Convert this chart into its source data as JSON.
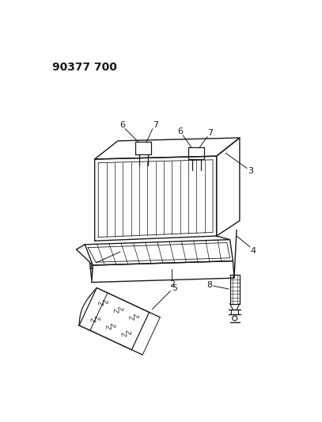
{
  "title_text": "90377 700",
  "bg_color": "#ffffff",
  "line_color": "#1a1a1a",
  "title_fontsize": 10,
  "label_fontsize": 8,
  "fig_width": 4.07,
  "fig_height": 5.33,
  "dpi": 100
}
